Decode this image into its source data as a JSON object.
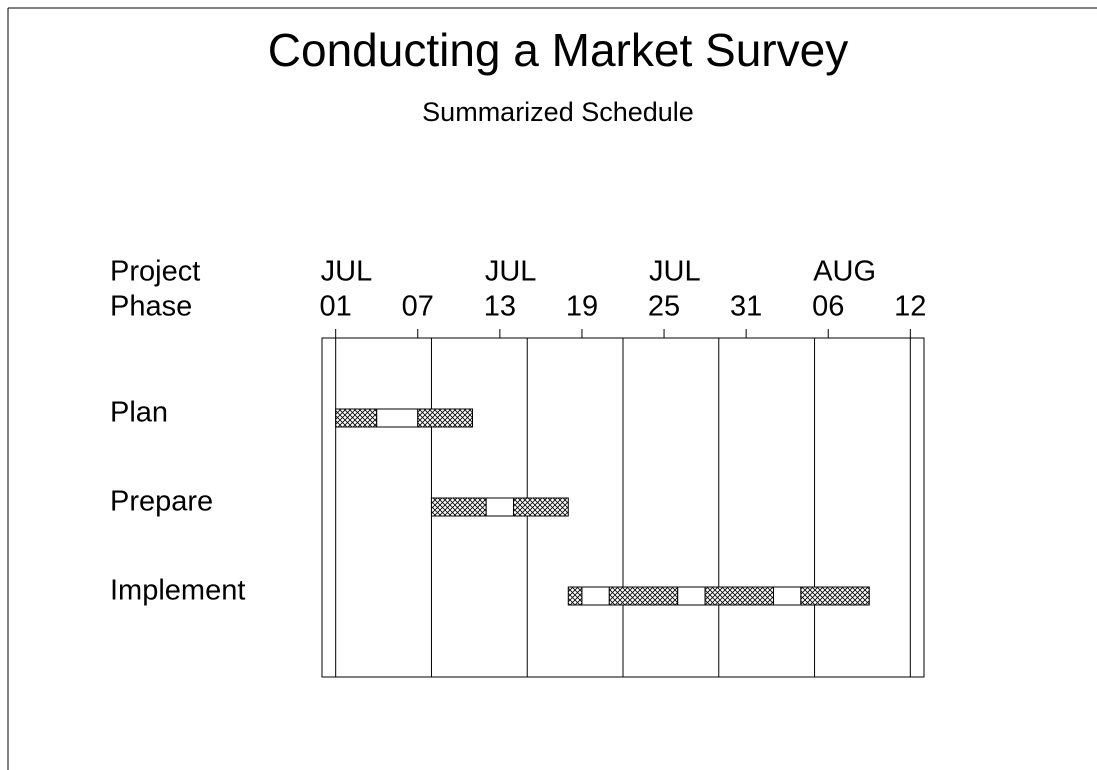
{
  "chart_data": {
    "type": "gantt",
    "title": "Conducting a Market Survey",
    "subtitle": "Summarized Schedule",
    "header": [
      "Project",
      "Phase"
    ],
    "xlim": [
      "JUN 30",
      "AUG 13"
    ],
    "xticks": [
      {
        "value": "JUL 01",
        "label": "01",
        "month": "JUL"
      },
      {
        "value": "JUL 07",
        "label": "07"
      },
      {
        "value": "JUL 13",
        "label": "13",
        "month": "JUL"
      },
      {
        "value": "JUL 19",
        "label": "19"
      },
      {
        "value": "JUL 25",
        "label": "25",
        "month": "JUL"
      },
      {
        "value": "JUL 31",
        "label": "31"
      },
      {
        "value": "AUG 06",
        "label": "06",
        "month": "AUG"
      },
      {
        "value": "AUG 12",
        "label": "12"
      }
    ],
    "grid_dates": [
      "JUL 01",
      "JUL 08",
      "JUL 15",
      "JUL 22",
      "JUL 29",
      "AUG 05",
      "AUG 12"
    ],
    "tasks": [
      {
        "name": "Plan",
        "segments": [
          {
            "start": "JUL 01",
            "end": "JUL 04",
            "pattern": "hatched"
          },
          {
            "start": "JUL 04",
            "end": "JUL 07",
            "pattern": "blank"
          },
          {
            "start": "JUL 07",
            "end": "JUL 11",
            "pattern": "hatched"
          }
        ]
      },
      {
        "name": "Prepare",
        "segments": [
          {
            "start": "JUL 08",
            "end": "JUL 12",
            "pattern": "hatched"
          },
          {
            "start": "JUL 12",
            "end": "JUL 14",
            "pattern": "blank"
          },
          {
            "start": "JUL 14",
            "end": "JUL 18",
            "pattern": "hatched"
          }
        ]
      },
      {
        "name": "Implement",
        "segments": [
          {
            "start": "JUL 18",
            "end": "JUL 19",
            "pattern": "hatched"
          },
          {
            "start": "JUL 19",
            "end": "JUL 21",
            "pattern": "blank"
          },
          {
            "start": "JUL 21",
            "end": "JUL 26",
            "pattern": "hatched"
          },
          {
            "start": "JUL 26",
            "end": "JUL 28",
            "pattern": "blank"
          },
          {
            "start": "JUL 28",
            "end": "AUG 02",
            "pattern": "hatched"
          },
          {
            "start": "AUG 02",
            "end": "AUG 04",
            "pattern": "blank"
          },
          {
            "start": "AUG 04",
            "end": "AUG 09",
            "pattern": "hatched"
          }
        ]
      }
    ]
  }
}
